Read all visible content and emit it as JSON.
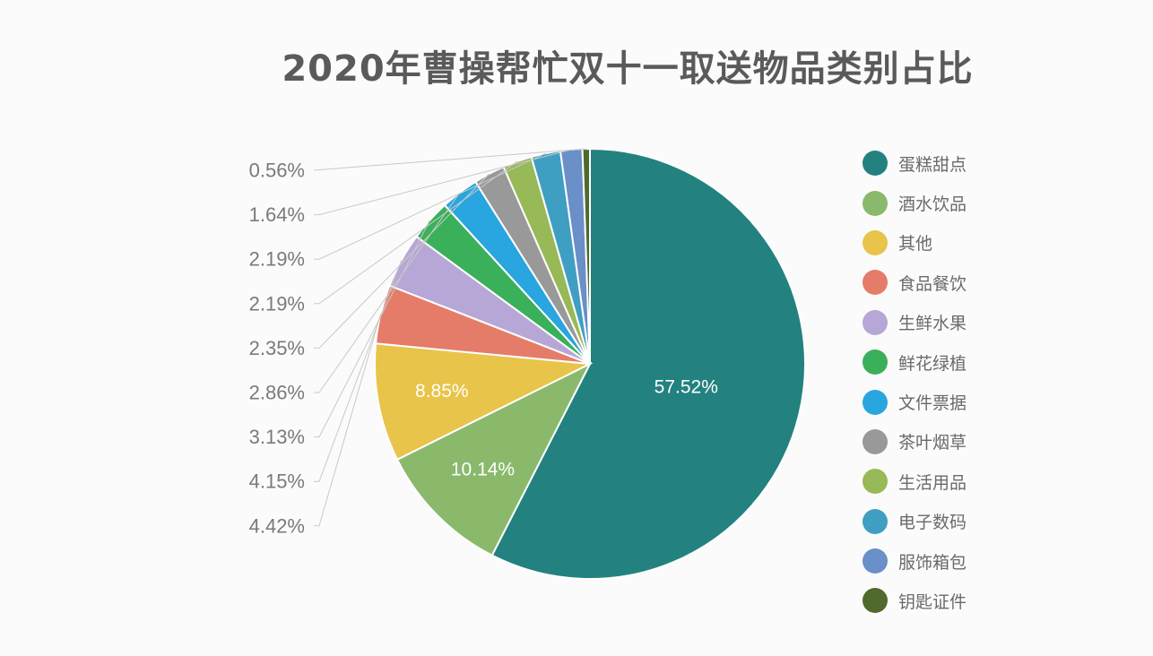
{
  "chart_data": {
    "type": "pie",
    "title": "2020年曹操帮忙双十一取送物品类别占比",
    "unit": "%",
    "legend_position": "right",
    "slices": [
      {
        "label": "蛋糕甜点",
        "value": 57.52,
        "color": "#23827f",
        "value_label": "57.52%",
        "label_position": "inside"
      },
      {
        "label": "酒水饮品",
        "value": 10.14,
        "color": "#8ab96c",
        "value_label": "10.14%",
        "label_position": "inside"
      },
      {
        "label": "其他",
        "value": 8.85,
        "color": "#e8c44a",
        "value_label": "8.85%",
        "label_position": "inside"
      },
      {
        "label": "食品餐饮",
        "value": 4.42,
        "color": "#e57c69",
        "value_label": "4.42%",
        "label_position": "outside"
      },
      {
        "label": "生鲜水果",
        "value": 4.15,
        "color": "#b6a7d6",
        "value_label": "4.15%",
        "label_position": "outside"
      },
      {
        "label": "鲜花绿植",
        "value": 3.13,
        "color": "#3ab05a",
        "value_label": "3.13%",
        "label_position": "outside"
      },
      {
        "label": "文件票据",
        "value": 2.86,
        "color": "#29a5df",
        "value_label": "2.86%",
        "label_position": "outside"
      },
      {
        "label": "茶叶烟草",
        "value": 2.35,
        "color": "#999999",
        "value_label": "2.35%",
        "label_position": "outside"
      },
      {
        "label": "生活用品",
        "value": 2.19,
        "color": "#98b957",
        "value_label": "2.19%",
        "label_position": "outside"
      },
      {
        "label": "电子数码",
        "value": 2.19,
        "color": "#3f9fc3",
        "value_label": "2.19%",
        "label_position": "outside"
      },
      {
        "label": "服饰箱包",
        "value": 1.64,
        "color": "#6a8fc9",
        "value_label": "1.64%",
        "label_position": "outside"
      },
      {
        "label": "钥匙证件",
        "value": 0.56,
        "color": "#4f6a2c",
        "value_label": "0.56%",
        "label_position": "outside"
      }
    ]
  }
}
